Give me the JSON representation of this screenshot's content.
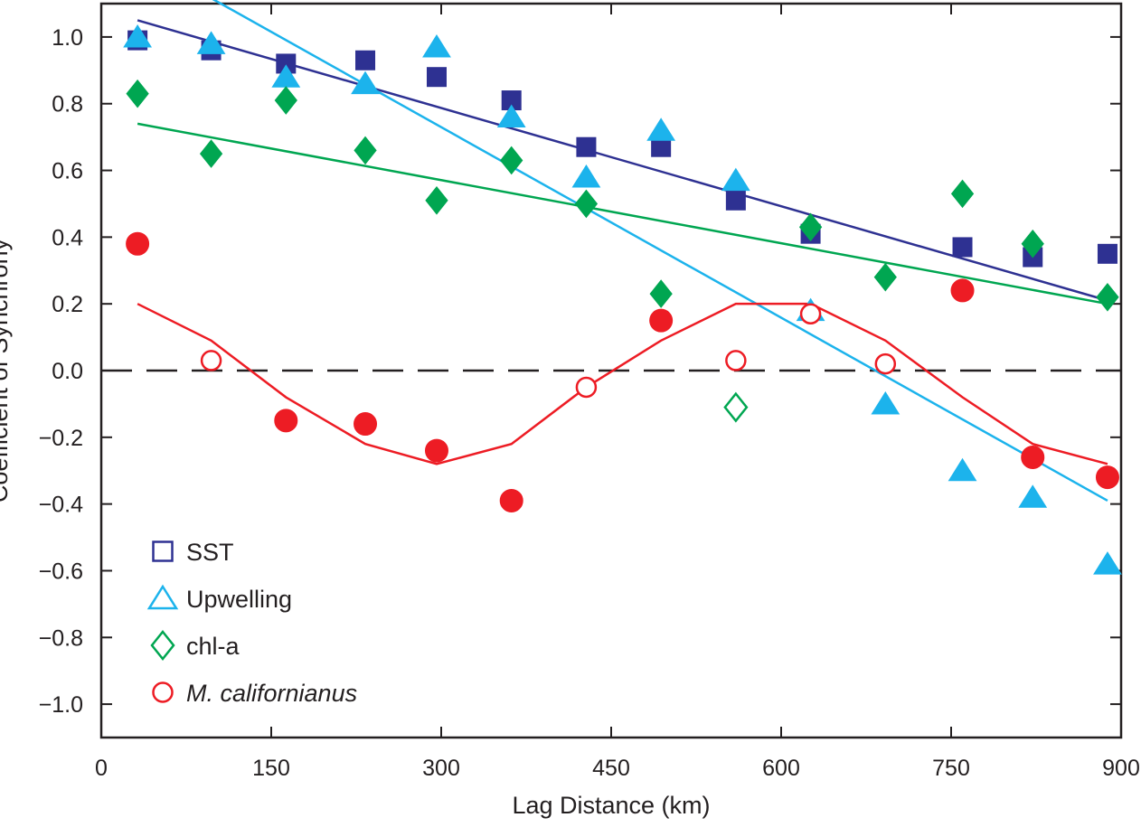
{
  "chart_data": {
    "type": "scatter",
    "xlabel": "Lag Distance (km)",
    "ylabel": "Coefficient of Synchrony",
    "xlim": [
      0,
      900
    ],
    "ylim": [
      -1.1,
      1.1
    ],
    "x_ticks": [
      0,
      150,
      300,
      450,
      600,
      750,
      900
    ],
    "x_tick_labels": [
      "0",
      "150",
      "300",
      "450",
      "600",
      "750",
      "900"
    ],
    "y_ticks": [
      1.0,
      0.8,
      0.6,
      0.4,
      0.2,
      0.0,
      -0.2,
      -0.4,
      -0.6,
      -0.8,
      -1.0
    ],
    "y_tick_labels": [
      "1.0",
      "0.8",
      "0.6",
      "0.4",
      "0.2",
      "0.0",
      "−0.2",
      "−0.4",
      "−0.6",
      "−0.8",
      "−1.0"
    ],
    "zero_line": {
      "y": 0,
      "style": "dashed"
    },
    "legend_position": "bottom-left",
    "series": [
      {
        "name": "SST",
        "marker": "square",
        "color": "#2e3192",
        "points": [
          {
            "x": 32,
            "y": 0.99,
            "filled": true
          },
          {
            "x": 97,
            "y": 0.96,
            "filled": true
          },
          {
            "x": 163,
            "y": 0.92,
            "filled": true
          },
          {
            "x": 233,
            "y": 0.93,
            "filled": true
          },
          {
            "x": 296,
            "y": 0.88,
            "filled": true
          },
          {
            "x": 362,
            "y": 0.81,
            "filled": true
          },
          {
            "x": 428,
            "y": 0.67,
            "filled": true
          },
          {
            "x": 494,
            "y": 0.67,
            "filled": true
          },
          {
            "x": 560,
            "y": 0.51,
            "filled": true
          },
          {
            "x": 626,
            "y": 0.41,
            "filled": true
          },
          {
            "x": 760,
            "y": 0.37,
            "filled": true
          },
          {
            "x": 822,
            "y": 0.34,
            "filled": true
          },
          {
            "x": 888,
            "y": 0.35,
            "filled": true
          }
        ],
        "fit_line": [
          [
            32,
            1.05
          ],
          [
            888,
            0.21
          ]
        ]
      },
      {
        "name": "Upwelling",
        "marker": "triangle",
        "color": "#1cb3ec",
        "points": [
          {
            "x": 32,
            "y": 1.0,
            "filled": true
          },
          {
            "x": 97,
            "y": 0.98,
            "filled": true
          },
          {
            "x": 163,
            "y": 0.88,
            "filled": true
          },
          {
            "x": 233,
            "y": 0.86,
            "filled": true
          },
          {
            "x": 296,
            "y": 0.97,
            "filled": true
          },
          {
            "x": 362,
            "y": 0.76,
            "filled": true
          },
          {
            "x": 428,
            "y": 0.58,
            "filled": true
          },
          {
            "x": 494,
            "y": 0.72,
            "filled": true
          },
          {
            "x": 560,
            "y": 0.57,
            "filled": true
          },
          {
            "x": 626,
            "y": 0.18,
            "filled": true
          },
          {
            "x": 692,
            "y": -0.1,
            "filled": true
          },
          {
            "x": 760,
            "y": -0.3,
            "filled": true
          },
          {
            "x": 822,
            "y": -0.38,
            "filled": true
          },
          {
            "x": 888,
            "y": -0.58,
            "filled": true
          }
        ],
        "fit_line": [
          [
            32,
            1.24
          ],
          [
            888,
            -0.39
          ]
        ]
      },
      {
        "name": "chl-a",
        "marker": "diamond",
        "color": "#00a651",
        "points": [
          {
            "x": 32,
            "y": 0.83,
            "filled": true
          },
          {
            "x": 97,
            "y": 0.65,
            "filled": true
          },
          {
            "x": 163,
            "y": 0.81,
            "filled": true
          },
          {
            "x": 233,
            "y": 0.66,
            "filled": true
          },
          {
            "x": 296,
            "y": 0.51,
            "filled": true
          },
          {
            "x": 362,
            "y": 0.63,
            "filled": true
          },
          {
            "x": 428,
            "y": 0.5,
            "filled": true
          },
          {
            "x": 494,
            "y": 0.23,
            "filled": true
          },
          {
            "x": 560,
            "y": -0.11,
            "filled": false
          },
          {
            "x": 626,
            "y": 0.43,
            "filled": true
          },
          {
            "x": 692,
            "y": 0.28,
            "filled": true
          },
          {
            "x": 760,
            "y": 0.53,
            "filled": true
          },
          {
            "x": 822,
            "y": 0.38,
            "filled": true
          },
          {
            "x": 888,
            "y": 0.22,
            "filled": true
          }
        ],
        "fit_line": [
          [
            32,
            0.74
          ],
          [
            888,
            0.2
          ]
        ]
      },
      {
        "name": "M. californianus",
        "marker": "circle",
        "color": "#ed1c24",
        "points": [
          {
            "x": 32,
            "y": 0.38,
            "filled": true
          },
          {
            "x": 97,
            "y": 0.03,
            "filled": false
          },
          {
            "x": 163,
            "y": -0.15,
            "filled": true
          },
          {
            "x": 233,
            "y": -0.16,
            "filled": true
          },
          {
            "x": 296,
            "y": -0.24,
            "filled": true
          },
          {
            "x": 362,
            "y": -0.39,
            "filled": true
          },
          {
            "x": 428,
            "y": -0.05,
            "filled": false
          },
          {
            "x": 494,
            "y": 0.15,
            "filled": true
          },
          {
            "x": 560,
            "y": 0.03,
            "filled": false
          },
          {
            "x": 626,
            "y": 0.17,
            "filled": false
          },
          {
            "x": 692,
            "y": 0.02,
            "filled": false
          },
          {
            "x": 760,
            "y": 0.24,
            "filled": true
          },
          {
            "x": 822,
            "y": -0.26,
            "filled": true
          },
          {
            "x": 888,
            "y": -0.32,
            "filled": true
          }
        ],
        "trend_line": [
          [
            32,
            0.2
          ],
          [
            97,
            0.09
          ],
          [
            163,
            -0.08
          ],
          [
            233,
            -0.22
          ],
          [
            296,
            -0.28
          ],
          [
            362,
            -0.22
          ],
          [
            428,
            -0.05
          ],
          [
            494,
            0.09
          ],
          [
            560,
            0.2
          ],
          [
            626,
            0.2
          ],
          [
            692,
            0.09
          ],
          [
            760,
            -0.08
          ],
          [
            822,
            -0.22
          ],
          [
            888,
            -0.28
          ]
        ]
      }
    ]
  }
}
